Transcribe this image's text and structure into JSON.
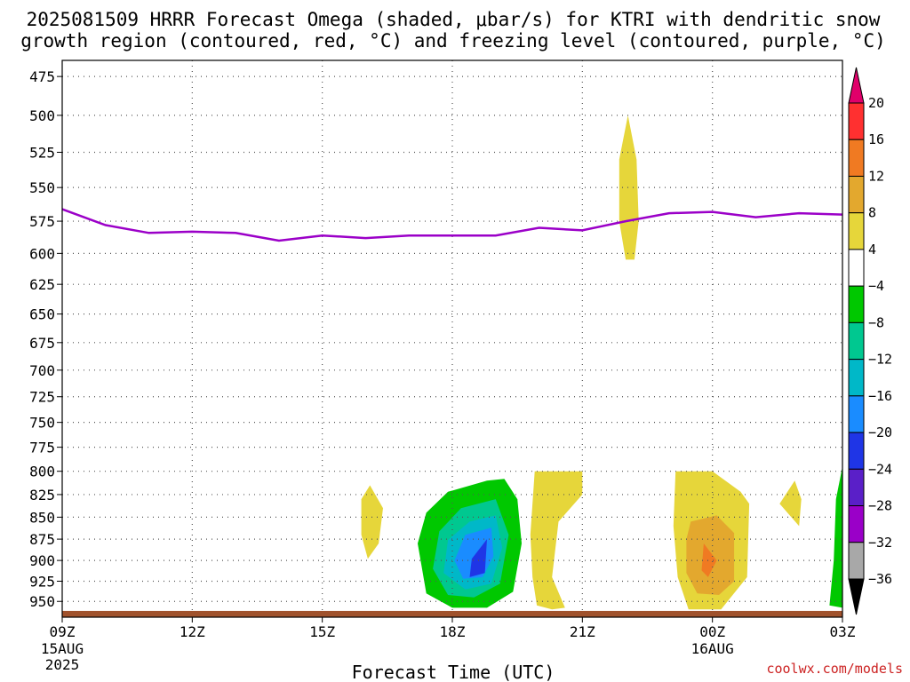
{
  "title_line1": "2025081509 HRRR Forecast Omega (shaded, μbar/s) for KTRI with dendritic snow",
  "title_line2": "growth region (contoured, red, °C) and freezing level (contoured, purple, °C)",
  "credit": "coolwx.com/models",
  "chart_data": {
    "type": "area",
    "xlabel": "Forecast Time (UTC)",
    "ylabel": "",
    "x_ticks": [
      {
        "hour": 0,
        "label": "09Z",
        "sub1": "15AUG",
        "sub2": "2025"
      },
      {
        "hour": 3,
        "label": "12Z",
        "sub1": "",
        "sub2": ""
      },
      {
        "hour": 6,
        "label": "15Z",
        "sub1": "",
        "sub2": ""
      },
      {
        "hour": 9,
        "label": "18Z",
        "sub1": "",
        "sub2": ""
      },
      {
        "hour": 12,
        "label": "21Z",
        "sub1": "",
        "sub2": ""
      },
      {
        "hour": 15,
        "label": "00Z",
        "sub1": "16AUG",
        "sub2": ""
      },
      {
        "hour": 18,
        "label": "03Z",
        "sub1": "",
        "sub2": ""
      }
    ],
    "xlim_hours": [
      0,
      18
    ],
    "y_ticks": [
      475,
      500,
      525,
      550,
      575,
      600,
      625,
      650,
      675,
      700,
      725,
      750,
      775,
      800,
      825,
      850,
      875,
      900,
      925,
      950
    ],
    "ylim_hpa": [
      465,
      970
    ],
    "y_scale": "log",
    "grid": true,
    "colorbar": {
      "labels": [
        "20",
        "16",
        "12",
        "8",
        "4",
        "−4",
        "−8",
        "−12",
        "−16",
        "−20",
        "−24",
        "−28",
        "−32",
        "−36"
      ],
      "colors": [
        "#e0006a",
        "#ff3030",
        "#f07a22",
        "#e3a82e",
        "#e6d63a",
        "#ffffff",
        "#00c800",
        "#00c890",
        "#00b8c8",
        "#1a8cff",
        "#1f35e6",
        "#5a1fc8",
        "#9a00c8",
        "#a8a8a8",
        "#000000"
      ]
    },
    "freezing_level": {
      "name": "",
      "color": "#9b00c8",
      "points": [
        [
          0,
          566
        ],
        [
          1,
          578
        ],
        [
          2,
          584
        ],
        [
          3,
          583
        ],
        [
          4,
          584
        ],
        [
          5,
          590
        ],
        [
          6,
          586
        ],
        [
          7,
          588
        ],
        [
          8,
          586
        ],
        [
          9,
          586
        ],
        [
          10,
          586
        ],
        [
          11,
          580
        ],
        [
          12,
          582
        ],
        [
          13,
          575
        ],
        [
          14,
          569
        ],
        [
          15,
          568
        ],
        [
          16,
          572
        ],
        [
          17,
          569
        ],
        [
          18,
          570
        ]
      ]
    },
    "omega_regions": [
      {
        "color": "#e6d63a",
        "points": [
          [
            13.05,
            500
          ],
          [
            13.25,
            530
          ],
          [
            13.3,
            575
          ],
          [
            13.2,
            605
          ],
          [
            13.0,
            605
          ],
          [
            12.85,
            575
          ],
          [
            12.85,
            530
          ]
        ]
      },
      {
        "color": "#e6d63a",
        "points": [
          [
            7.1,
            815
          ],
          [
            7.4,
            840
          ],
          [
            7.3,
            880
          ],
          [
            7.05,
            898
          ],
          [
            6.9,
            870
          ],
          [
            6.9,
            830
          ]
        ]
      },
      {
        "color": "#00c800",
        "points": [
          [
            10.2,
            808
          ],
          [
            10.5,
            830
          ],
          [
            10.6,
            880
          ],
          [
            10.4,
            938
          ],
          [
            9.8,
            958
          ],
          [
            9.0,
            958
          ],
          [
            8.4,
            940
          ],
          [
            8.2,
            880
          ],
          [
            8.4,
            845
          ],
          [
            8.9,
            822
          ],
          [
            9.8,
            810
          ]
        ]
      },
      {
        "color": "#00c890",
        "points": [
          [
            10.0,
            830
          ],
          [
            10.3,
            870
          ],
          [
            10.1,
            928
          ],
          [
            9.5,
            945
          ],
          [
            8.9,
            942
          ],
          [
            8.55,
            910
          ],
          [
            8.7,
            866
          ],
          [
            9.2,
            840
          ]
        ]
      },
      {
        "color": "#00b8c8",
        "points": [
          [
            10.0,
            848
          ],
          [
            10.15,
            885
          ],
          [
            9.9,
            928
          ],
          [
            9.3,
            935
          ],
          [
            8.8,
            915
          ],
          [
            8.9,
            876
          ],
          [
            9.4,
            855
          ]
        ]
      },
      {
        "color": "#1a8cff",
        "points": [
          [
            9.9,
            862
          ],
          [
            9.95,
            895
          ],
          [
            9.7,
            920
          ],
          [
            9.25,
            922
          ],
          [
            9.05,
            900
          ],
          [
            9.3,
            870
          ]
        ]
      },
      {
        "color": "#1f35e6",
        "points": [
          [
            9.8,
            875
          ],
          [
            9.75,
            915
          ],
          [
            9.4,
            920
          ],
          [
            9.45,
            898
          ]
        ]
      },
      {
        "color": "#e6d63a",
        "points": [
          [
            10.9,
            800
          ],
          [
            12.0,
            800
          ],
          [
            12.0,
            825
          ],
          [
            11.45,
            855
          ],
          [
            11.3,
            920
          ],
          [
            11.6,
            958
          ],
          [
            11.3,
            960
          ],
          [
            10.95,
            955
          ],
          [
            10.85,
            920
          ],
          [
            10.8,
            870
          ]
        ]
      },
      {
        "color": "#e6d63a",
        "points": [
          [
            14.15,
            800
          ],
          [
            15.0,
            800
          ],
          [
            15.65,
            822
          ],
          [
            15.85,
            835
          ],
          [
            15.8,
            920
          ],
          [
            15.2,
            960
          ],
          [
            14.45,
            960
          ],
          [
            14.2,
            920
          ],
          [
            14.1,
            860
          ]
        ]
      },
      {
        "color": "#e3a82e",
        "points": [
          [
            14.5,
            855
          ],
          [
            15.1,
            848
          ],
          [
            15.5,
            868
          ],
          [
            15.5,
            925
          ],
          [
            15.15,
            942
          ],
          [
            14.65,
            940
          ],
          [
            14.4,
            915
          ],
          [
            14.4,
            875
          ]
        ]
      },
      {
        "color": "#f07a22",
        "points": [
          [
            14.8,
            880
          ],
          [
            15.1,
            900
          ],
          [
            14.9,
            920
          ],
          [
            14.75,
            912
          ]
        ]
      },
      {
        "color": "#e6d63a",
        "points": [
          [
            16.9,
            810
          ],
          [
            17.05,
            830
          ],
          [
            17.0,
            860
          ],
          [
            16.55,
            835
          ]
        ]
      },
      {
        "color": "#00c800",
        "points": [
          [
            18.0,
            795
          ],
          [
            18.0,
            958
          ],
          [
            17.7,
            955
          ],
          [
            17.8,
            900
          ],
          [
            17.85,
            830
          ]
        ]
      }
    ],
    "terrain": {
      "color": "#a0522d",
      "top_hpa": 962
    }
  }
}
